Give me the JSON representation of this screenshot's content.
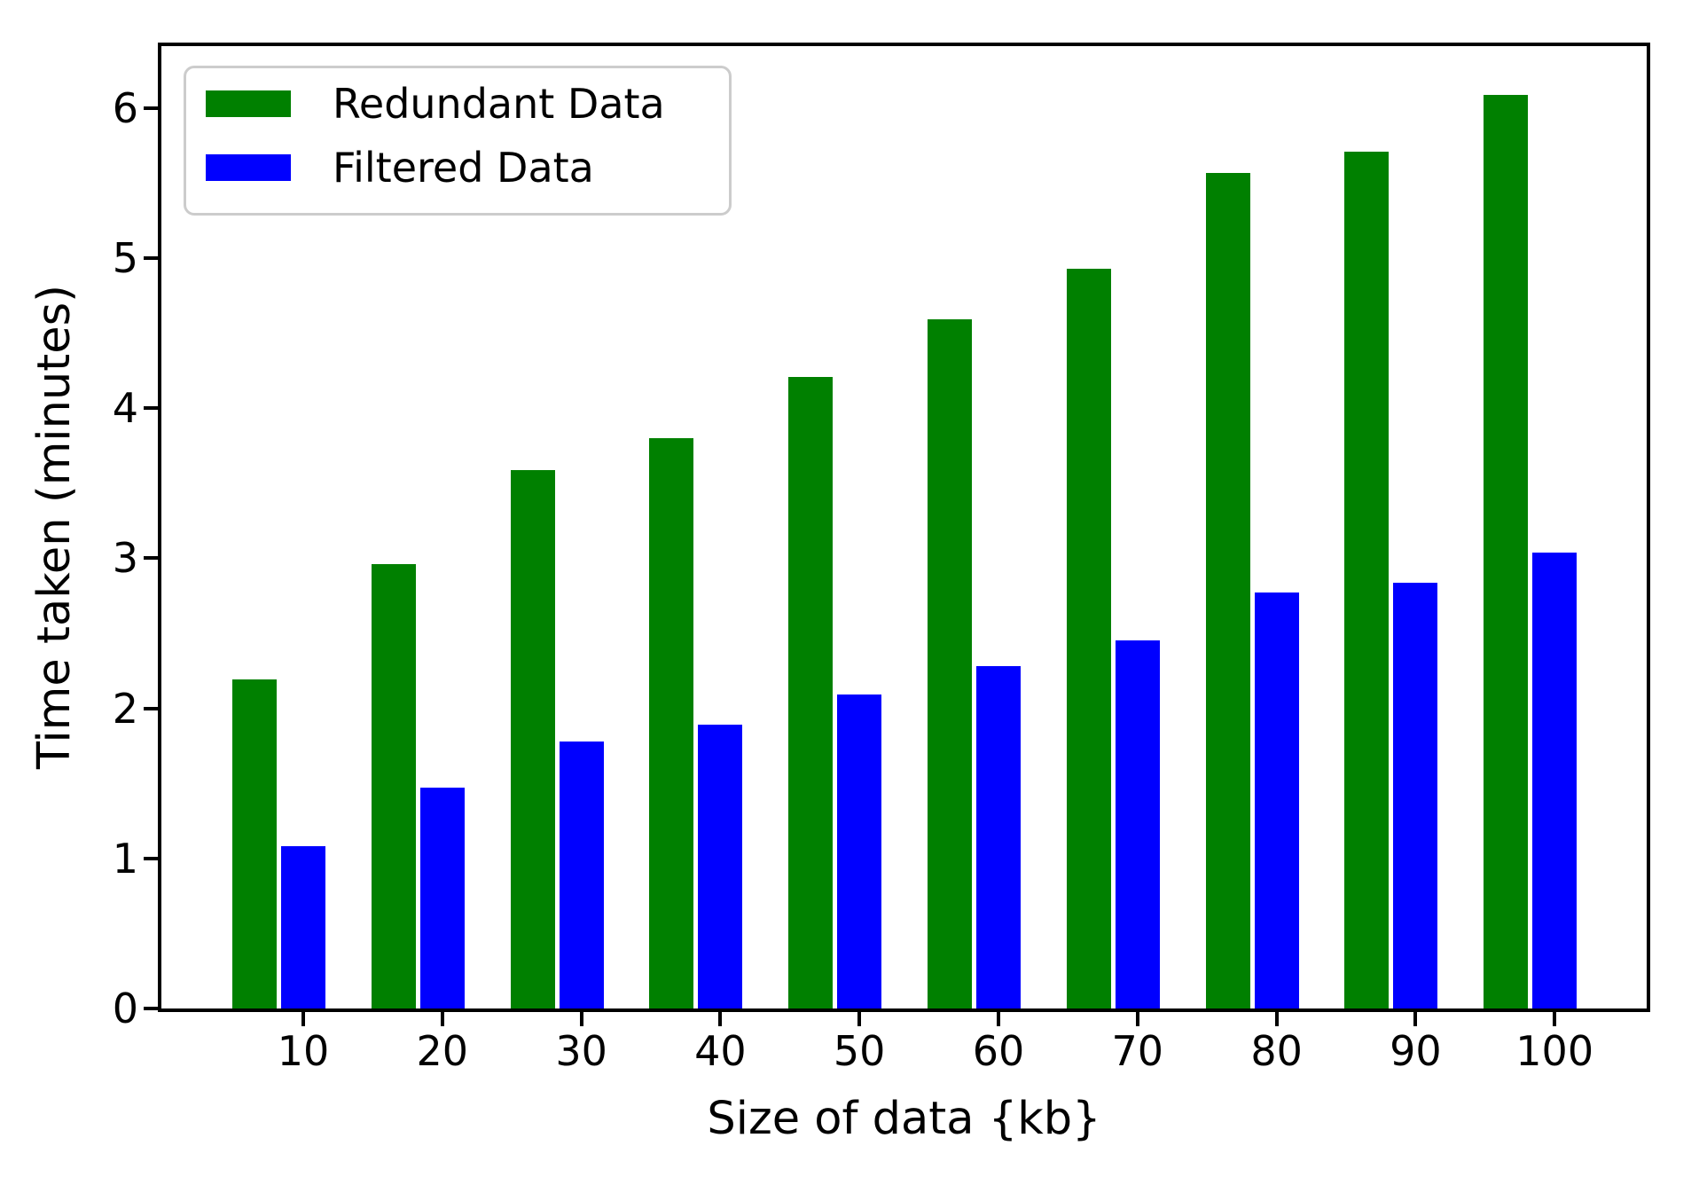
{
  "chart_data": {
    "type": "bar",
    "title": "",
    "xlabel": "Size of data {kb}",
    "ylabel": "Time taken (minutes)",
    "categories": [
      10,
      20,
      30,
      40,
      50,
      60,
      70,
      80,
      90,
      100
    ],
    "series": [
      {
        "name": "Redundant Data",
        "color": "#008000",
        "values": [
          2.19,
          2.96,
          3.59,
          3.8,
          4.21,
          4.59,
          4.93,
          5.57,
          5.71,
          6.09
        ]
      },
      {
        "name": "Filtered Data",
        "color": "#0000ff",
        "values": [
          1.08,
          1.47,
          1.78,
          1.89,
          2.09,
          2.28,
          2.45,
          2.77,
          2.84,
          3.04
        ]
      }
    ],
    "yticks": [
      0,
      1,
      2,
      3,
      4,
      5,
      6
    ],
    "ylim": [
      0,
      6.41
    ],
    "xlim_ticks": "categorical ticks 10-100 step 10",
    "legend_position": "upper left",
    "grid": false,
    "colors": {
      "axes": "#000000",
      "text": "#000000",
      "legend_border": "#cccccc",
      "background": "#ffffff"
    }
  }
}
